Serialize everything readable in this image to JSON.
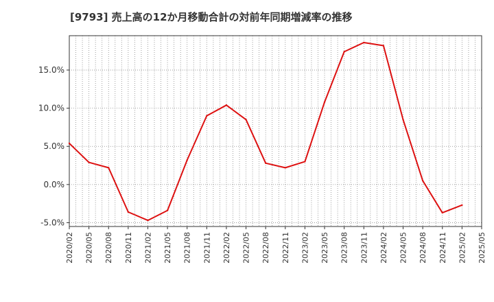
{
  "chart_data": {
    "type": "line",
    "title": "[9793]  売上高の12か月移動合計の対前年同期増減率の推移",
    "xlabel": "",
    "ylabel": "",
    "ylim": [
      -5.5,
      19.5
    ],
    "y_ticks": [
      -5.0,
      0.0,
      5.0,
      10.0,
      15.0
    ],
    "y_tick_labels": [
      "-5.0%",
      "0.0%",
      "5.0%",
      "10.0%",
      "15.0%"
    ],
    "categories": [
      "2020/02",
      "2020/05",
      "2020/08",
      "2020/11",
      "2021/02",
      "2021/05",
      "2021/08",
      "2021/11",
      "2022/02",
      "2022/05",
      "2022/08",
      "2022/11",
      "2023/02",
      "2023/05",
      "2023/08",
      "2023/11",
      "2024/02",
      "2024/05",
      "2024/08",
      "2024/11",
      "2025/02",
      "2025/05"
    ],
    "grid": true,
    "series": [
      {
        "name": "増減率",
        "color": "#dd1111",
        "values": [
          5.4,
          2.9,
          2.2,
          -3.6,
          -4.7,
          -3.4,
          3.2,
          9.0,
          10.4,
          8.5,
          2.8,
          2.2,
          3.0,
          10.8,
          17.4,
          18.6,
          18.2,
          8.5,
          0.5,
          -3.7,
          -2.7,
          null
        ]
      }
    ]
  }
}
